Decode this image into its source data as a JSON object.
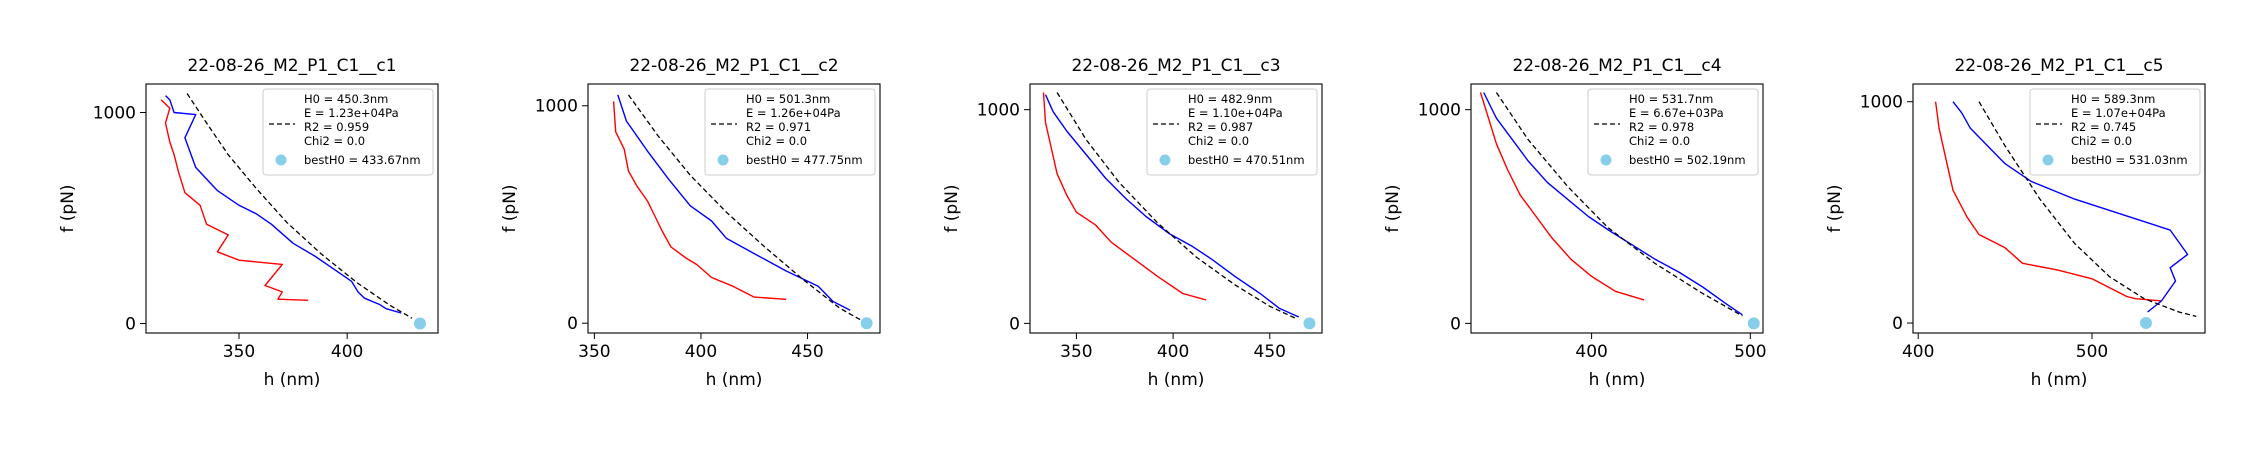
{
  "colors": {
    "retract": "#ff0000",
    "approach": "#0000ff",
    "fit": "#000000",
    "bestH0": "#87ceeb"
  },
  "chart_data": [
    {
      "type": "line",
      "title": "22-08-26_M2_P1_C1__c1",
      "xlabel": "h (nm)",
      "ylabel": "f (pN)",
      "xlim": [
        307,
        442
      ],
      "ylim": [
        -45,
        1135
      ],
      "xticks": [
        350,
        400
      ],
      "yticks": [
        0,
        1000
      ],
      "legend": {
        "position": "upper right",
        "lines": [
          "H0 = 450.3nm",
          "E = 1.23e+04Pa",
          "R2 = 0.959",
          "Chi2 = 0.0"
        ],
        "point_label": "bestH0 = 433.67nm"
      },
      "best_h0": {
        "x": 433.67,
        "y": 0
      },
      "series": [
        {
          "role": "retract",
          "x": [
            382,
            368,
            370,
            362,
            370,
            350,
            340,
            345,
            335,
            332,
            325,
            322,
            320,
            318,
            316,
            318,
            314
          ],
          "y": [
            110,
            115,
            150,
            180,
            280,
            300,
            340,
            420,
            470,
            560,
            620,
            720,
            800,
            860,
            950,
            1020,
            1060
          ]
        },
        {
          "role": "approach",
          "x": [
            425,
            418,
            415,
            408,
            405,
            402,
            395,
            385,
            375,
            365,
            358,
            350,
            340,
            330,
            325,
            330,
            320,
            318,
            316
          ],
          "y": [
            50,
            70,
            90,
            120,
            150,
            200,
            250,
            320,
            380,
            470,
            520,
            560,
            630,
            740,
            880,
            990,
            1000,
            1060,
            1080
          ]
        },
        {
          "role": "fit",
          "x": [
            326,
            335,
            345,
            358,
            372,
            388,
            405,
            420,
            430
          ],
          "y": [
            1090,
            950,
            800,
            640,
            480,
            330,
            190,
            85,
            25
          ]
        }
      ]
    },
    {
      "type": "line",
      "title": "22-08-26_M2_P1_C1__c2",
      "xlabel": "h (nm)",
      "ylabel": "f (pN)",
      "xlim": [
        347,
        484
      ],
      "ylim": [
        -45,
        1100
      ],
      "xticks": [
        350,
        400,
        450
      ],
      "yticks": [
        0,
        1000
      ],
      "legend": {
        "position": "upper right",
        "lines": [
          "H0 = 501.3nm",
          "E = 1.26e+04Pa",
          "R2 = 0.971",
          "Chi2 = 0.0"
        ],
        "point_label": "bestH0 = 477.75nm"
      },
      "best_h0": {
        "x": 477.75,
        "y": 0
      },
      "series": [
        {
          "role": "retract",
          "x": [
            440,
            425,
            415,
            405,
            398,
            393,
            386,
            382,
            378,
            375,
            370,
            366,
            364,
            360,
            359
          ],
          "y": [
            110,
            120,
            170,
            210,
            270,
            300,
            350,
            420,
            500,
            560,
            630,
            700,
            800,
            880,
            1020
          ]
        },
        {
          "role": "approach",
          "x": [
            470,
            462,
            455,
            440,
            425,
            412,
            405,
            395,
            385,
            375,
            365,
            361
          ],
          "y": [
            60,
            100,
            170,
            240,
            320,
            390,
            470,
            540,
            660,
            790,
            930,
            1050
          ]
        },
        {
          "role": "fit",
          "x": [
            366,
            380,
            395,
            412,
            430,
            448,
            465,
            475
          ],
          "y": [
            1050,
            860,
            680,
            510,
            350,
            200,
            70,
            15
          ]
        }
      ]
    },
    {
      "type": "line",
      "title": "22-08-26_M2_P1_C1__c3",
      "xlabel": "h (nm)",
      "ylabel": "f (pN)",
      "xlim": [
        326,
        477
      ],
      "ylim": [
        -45,
        1120
      ],
      "xticks": [
        350,
        400,
        450
      ],
      "yticks": [
        0,
        1000
      ],
      "legend": {
        "position": "upper right",
        "lines": [
          "H0 = 482.9nm",
          "E = 1.10e+04Pa",
          "R2 = 0.987",
          "Chi2 = 0.0"
        ],
        "point_label": "bestH0 = 470.51nm"
      },
      "best_h0": {
        "x": 470.51,
        "y": 0
      },
      "series": [
        {
          "role": "retract",
          "x": [
            417,
            405,
            392,
            380,
            368,
            360,
            350,
            345,
            340,
            337,
            334,
            333
          ],
          "y": [
            110,
            140,
            220,
            300,
            380,
            460,
            520,
            600,
            700,
            820,
            940,
            1080
          ]
        },
        {
          "role": "approach",
          "x": [
            465,
            455,
            445,
            432,
            420,
            410,
            398,
            386,
            376,
            365,
            355,
            345,
            338,
            334
          ],
          "y": [
            30,
            70,
            140,
            220,
            300,
            360,
            420,
            500,
            580,
            680,
            790,
            900,
            990,
            1070
          ]
        },
        {
          "role": "fit",
          "x": [
            340,
            355,
            372,
            392,
            412,
            432,
            450,
            463
          ],
          "y": [
            1080,
            860,
            660,
            470,
            310,
            180,
            80,
            25
          ]
        }
      ]
    },
    {
      "type": "line",
      "title": "22-08-26_M2_P1_C1__c4",
      "xlabel": "h (nm)",
      "ylabel": "f (pN)",
      "xlim": [
        324,
        508
      ],
      "ylim": [
        -45,
        1120
      ],
      "xticks": [
        400,
        500
      ],
      "yticks": [
        0,
        1000
      ],
      "legend": {
        "position": "upper right",
        "lines": [
          "H0 = 531.7nm",
          "E = 6.67e+03Pa",
          "R2 = 0.978",
          "Chi2 = 0.0"
        ],
        "point_label": "bestH0 = 502.19nm"
      },
      "best_h0": {
        "x": 502.19,
        "y": 0
      },
      "series": [
        {
          "role": "retract",
          "x": [
            433,
            415,
            400,
            387,
            375,
            365,
            355,
            347,
            340,
            335,
            330
          ],
          "y": [
            110,
            150,
            220,
            300,
            400,
            500,
            600,
            720,
            840,
            960,
            1080
          ]
        },
        {
          "role": "approach",
          "x": [
            495,
            485,
            470,
            455,
            440,
            425,
            412,
            398,
            385,
            372,
            360,
            350,
            340,
            332
          ],
          "y": [
            40,
            90,
            170,
            240,
            300,
            370,
            430,
            500,
            580,
            660,
            760,
            860,
            960,
            1080
          ]
        },
        {
          "role": "fit",
          "x": [
            340,
            360,
            385,
            410,
            440,
            470,
            495
          ],
          "y": [
            1080,
            860,
            640,
            450,
            280,
            140,
            35
          ]
        }
      ]
    },
    {
      "type": "line",
      "title": "22-08-26_M2_P1_C1__c5",
      "xlabel": "h (nm)",
      "ylabel": "f (pN)",
      "xlim": [
        397,
        565
      ],
      "ylim": [
        -45,
        1080
      ],
      "xticks": [
        400,
        500
      ],
      "yticks": [
        0,
        1000
      ],
      "legend": {
        "position": "upper right",
        "lines": [
          "H0 = 589.3nm",
          "E = 1.07e+04Pa",
          "R2 = 0.745",
          "Chi2 = 0.0"
        ],
        "point_label": "bestH0 = 531.03nm"
      },
      "best_h0": {
        "x": 531.03,
        "y": 0
      },
      "series": [
        {
          "role": "retract",
          "x": [
            540,
            525,
            520,
            500,
            480,
            460,
            450,
            435,
            428,
            420,
            416,
            412,
            410
          ],
          "y": [
            100,
            110,
            120,
            200,
            240,
            270,
            340,
            400,
            480,
            600,
            740,
            880,
            1000
          ]
        },
        {
          "role": "approach",
          "x": [
            532,
            540,
            548,
            545,
            555,
            545,
            490,
            465,
            450,
            440,
            430,
            425,
            420
          ],
          "y": [
            50,
            100,
            190,
            250,
            310,
            420,
            560,
            640,
            720,
            800,
            880,
            950,
            1000
          ]
        },
        {
          "role": "fit",
          "x": [
            435,
            450,
            470,
            490,
            510,
            530,
            550,
            560
          ],
          "y": [
            1000,
            800,
            560,
            360,
            210,
            110,
            50,
            30
          ]
        }
      ]
    }
  ]
}
